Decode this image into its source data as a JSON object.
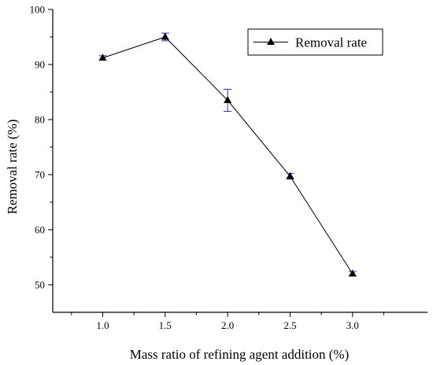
{
  "chart_data": {
    "type": "line",
    "xlabel": "Mass ratio of refining agent addition (%)",
    "ylabel": "Removal rate (%)",
    "xlim": [
      0.6,
      3.6
    ],
    "ylim": [
      45,
      100
    ],
    "x_ticks": [
      "1.0",
      "1.5",
      "2.0",
      "2.5",
      "3.0"
    ],
    "x_tick_values": [
      1.0,
      1.5,
      2.0,
      2.5,
      3.0
    ],
    "y_ticks": [
      "50",
      "60",
      "70",
      "80",
      "90",
      "100"
    ],
    "y_tick_values": [
      50,
      60,
      70,
      80,
      90,
      100
    ],
    "series": [
      {
        "name": "Removal rate",
        "x": [
          1.0,
          1.5,
          2.0,
          2.5,
          3.0
        ],
        "y": [
          91.2,
          95.0,
          83.5,
          69.7,
          52.0
        ],
        "error": [
          0.4,
          0.7,
          2.0,
          0.5,
          0.4
        ]
      }
    ],
    "legend_position": "top-right",
    "grid": false,
    "colors": {
      "line": "#000000",
      "marker": "#000000",
      "error_bar": "#2b2bd6"
    }
  }
}
